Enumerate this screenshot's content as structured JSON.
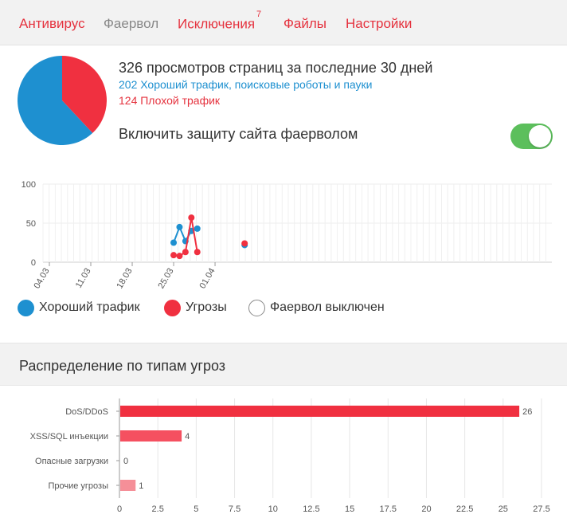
{
  "tabs": [
    {
      "label": "Антивирус",
      "active": true
    },
    {
      "label": "Фаервол",
      "active": false
    },
    {
      "label": "Исключения",
      "badge": "7",
      "active": true
    },
    {
      "label": "Файлы",
      "active": true
    },
    {
      "label": "Настройки",
      "active": true
    }
  ],
  "colors": {
    "good": "#1e90d0",
    "bad": "#f03040",
    "accent": "#e5323e",
    "toggle_on": "#5cbf5c"
  },
  "summary": {
    "title": "326 просмотров страниц за последние 30 дней",
    "good": "202 Хороший трафик, поисковые роботы и пауки",
    "bad": "124 Плохой трафик"
  },
  "pie": {
    "good": 202,
    "bad": 124
  },
  "firewall": {
    "label": "Включить защиту сайта фаерволом",
    "enabled": true
  },
  "legend": [
    {
      "label": "Хороший трафик",
      "color": "#1e90d0"
    },
    {
      "label": "Угрозы",
      "color": "#f03040"
    },
    {
      "label": "Фаервол выключен",
      "color": "#ffffff"
    }
  ],
  "threats_section": {
    "title": "Распределение по типам угроз"
  },
  "chart_data": [
    {
      "type": "line",
      "x_ticks": [
        "04.03",
        "11.03",
        "18.03",
        "25.03",
        "01.04"
      ],
      "y_ticks": [
        0,
        50,
        100
      ],
      "ylim": [
        0,
        100
      ],
      "grid": true,
      "series": [
        {
          "name": "Хороший трафик",
          "color": "#1e90d0",
          "x": [
            21,
            22,
            23,
            24,
            25,
            33
          ],
          "values": [
            25,
            45,
            27,
            40,
            43,
            22
          ]
        },
        {
          "name": "Угрозы",
          "color": "#f03040",
          "x": [
            21,
            22,
            23,
            24,
            25,
            33
          ],
          "values": [
            9,
            8,
            13,
            57,
            13,
            24
          ]
        }
      ]
    },
    {
      "type": "bar",
      "orientation": "horizontal",
      "categories": [
        "DoS/DDoS",
        "XSS/SQL инъекции",
        "Опасные загрузки",
        "Прочие угрозы"
      ],
      "values": [
        26,
        4,
        0,
        1
      ],
      "colors": [
        "#f03040",
        "#f55060",
        "#f03040",
        "#f58f98"
      ],
      "x_ticks": [
        "0",
        "2.5",
        "5",
        "7.5",
        "10",
        "12.5",
        "15",
        "17.5",
        "20",
        "22.5",
        "25",
        "27.5"
      ],
      "xlim": [
        0,
        27.5
      ],
      "grid": true
    }
  ]
}
